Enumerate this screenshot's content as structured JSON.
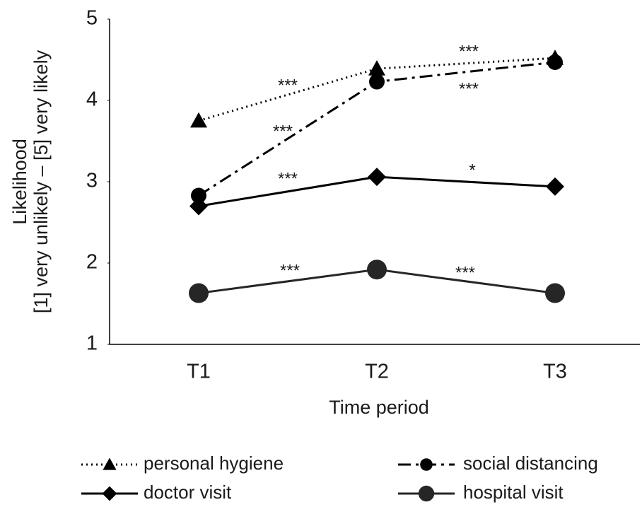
{
  "chart_data": {
    "type": "line",
    "y_label": [
      "Likelihood",
      "[1] very unlikely – [5] very likely"
    ],
    "x_label": "Time period",
    "categories": [
      "T1",
      "T2",
      "T3"
    ],
    "ylim": [
      1,
      5
    ],
    "yticks": [
      1,
      2,
      3,
      4,
      5
    ],
    "grid": false,
    "series": [
      {
        "name": "personal hygiene",
        "color": "#000000",
        "values": [
          3.75,
          4.39,
          4.52
        ]
      },
      {
        "name": "social distancing",
        "color": "#000000",
        "values": [
          2.83,
          4.23,
          4.47
        ]
      },
      {
        "name": "doctor visit",
        "color": "#000000",
        "values": [
          2.7,
          3.06,
          2.94
        ]
      },
      {
        "name": "hospital visit",
        "color": "#262626",
        "values": [
          1.63,
          1.92,
          1.63
        ]
      }
    ],
    "annotations": [
      "***",
      "***",
      "***",
      "***",
      "***",
      "*",
      "***",
      "***"
    ],
    "legend": "bottom"
  }
}
